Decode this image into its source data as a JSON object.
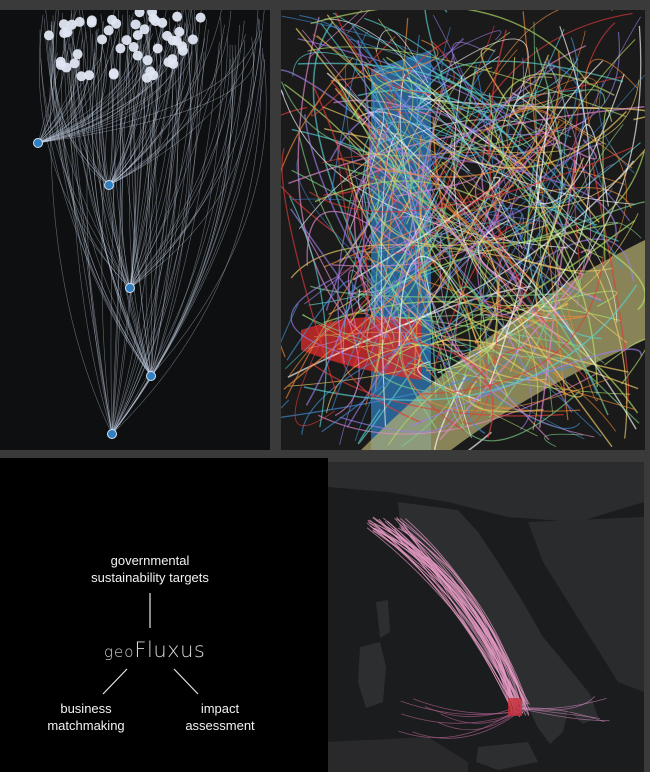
{
  "diagram": {
    "top_label": "governmental\nsustainability targets",
    "logo_prefix": "geo",
    "logo_main": "Fluxus",
    "left_label": "business\nmatchmaking",
    "right_label": "impact\nassessment"
  },
  "colors": {
    "background": "#000000",
    "node_blue": "#2f7fc1",
    "flow_white": "#c9d6ea",
    "flow_pink": "#e79bc4"
  }
}
